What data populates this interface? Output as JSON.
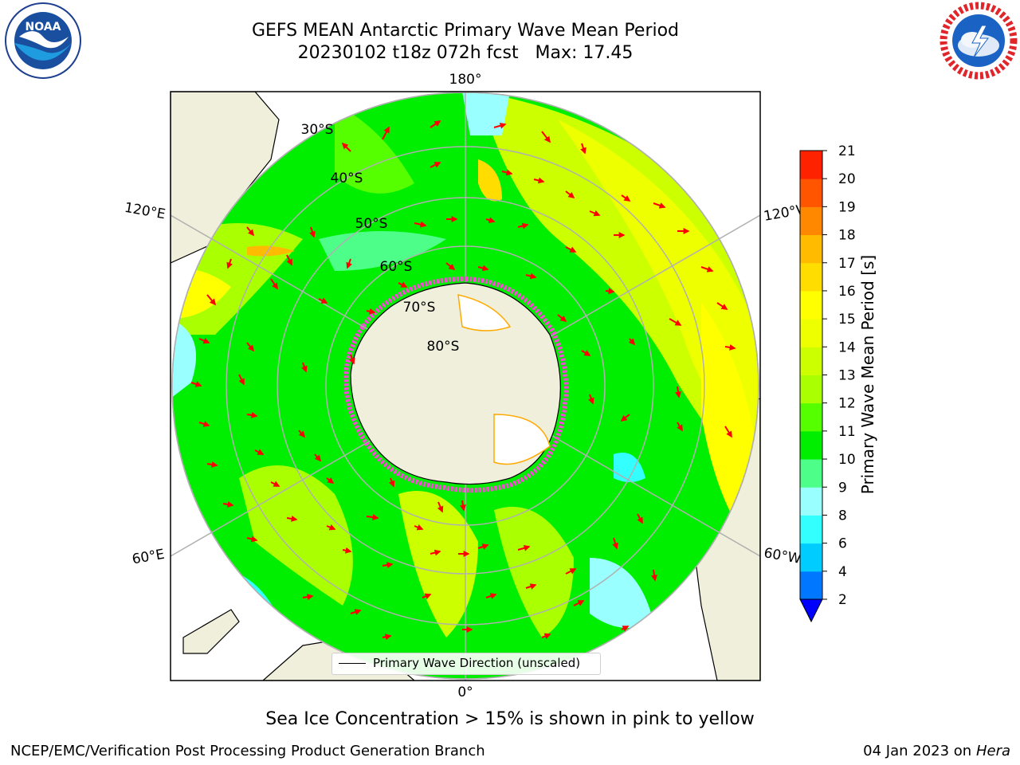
{
  "header": {
    "title_line1": "GEFS MEAN Antarctic Primary Wave Mean Period",
    "title_line2": "20230102 t18z 072h fcst   Max: 17.45"
  },
  "logos": {
    "left": {
      "name": "noaa-logo",
      "text": "NOAA",
      "ring_text": "NATIONAL OCEANIC AND ATMOSPHERIC ADMINISTRATION · U.S. DEPARTMENT OF COMMERCE"
    },
    "right": {
      "name": "nws-logo",
      "ring_text": "NATIONAL WEATHER SERVICE"
    }
  },
  "map": {
    "projection": "south-polar-stereographic",
    "longitude_labels": {
      "top": "180°",
      "bottom": "0°",
      "upper_left": "120°E",
      "upper_right": "120°W",
      "lower_left": "60°E",
      "lower_right": "60°W"
    },
    "latitude_labels": [
      "30°S",
      "40°S",
      "50°S",
      "60°S",
      "70°S",
      "80°S"
    ],
    "colors": {
      "land": "#efefdc",
      "ice_edge": "#ff44dd",
      "arrow": "#ff0000",
      "grid": "#b0b0b0"
    }
  },
  "legend": {
    "label": "Primary Wave Direction (unscaled)"
  },
  "colorbar": {
    "label": "Primary Wave Mean Period [s]",
    "ticks": [
      "2",
      "4",
      "6",
      "8",
      "9",
      "10",
      "11",
      "12",
      "13",
      "14",
      "15",
      "16",
      "17",
      "18",
      "19",
      "20",
      "21"
    ],
    "colors": [
      "#0077ff",
      "#00ccff",
      "#33ffff",
      "#99ffff",
      "#4dff88",
      "#00ee00",
      "#55ff00",
      "#aaff00",
      "#ccff00",
      "#eeff00",
      "#ffff00",
      "#ffdd00",
      "#ffbb00",
      "#ff8800",
      "#ff5500",
      "#ff2200"
    ],
    "extend_min_color": "#0000ff"
  },
  "footer": {
    "subtitle": "Sea Ice Concentration > 15% is shown in pink to yellow",
    "left": "NCEP/EMC/Verification Post Processing Product Generation Branch",
    "right_prefix": "04 Jan 2023 on ",
    "right_italic": "Hera"
  }
}
